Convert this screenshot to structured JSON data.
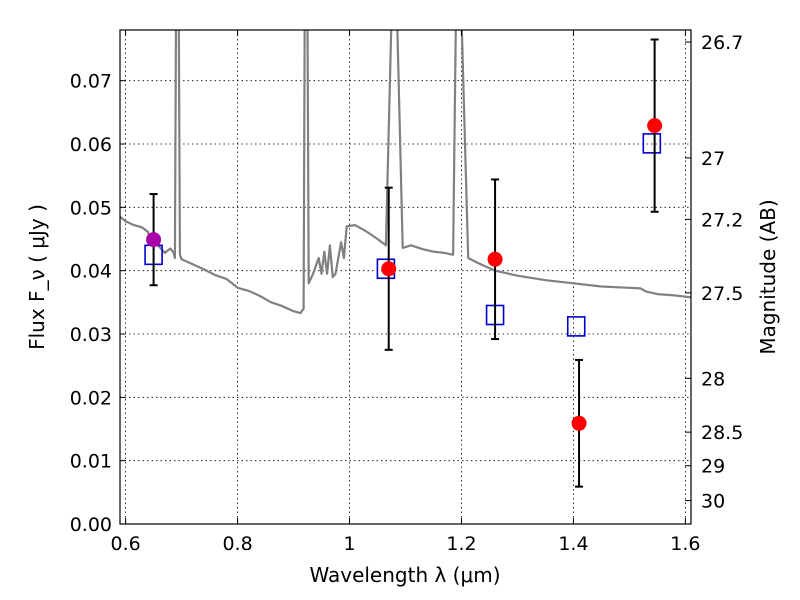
{
  "chart_data": {
    "type": "scatter",
    "xlabel": "Wavelength  λ (μm)",
    "ylabel": "Flux  F_ν  ( μJy )",
    "ylabel_right": "Magnitude (AB)",
    "xlim": [
      0.59,
      1.61
    ],
    "ylim": [
      0.0,
      0.078
    ],
    "grid": true,
    "x_ticks": [
      0.6,
      0.8,
      1.0,
      1.2,
      1.4,
      1.6
    ],
    "x_tick_labels": [
      "0.6",
      "0.8",
      "1",
      "1.2",
      "1.4",
      "1.6"
    ],
    "y_ticks": [
      0.0,
      0.01,
      0.02,
      0.03,
      0.04,
      0.05,
      0.06,
      0.07
    ],
    "y_tick_labels": [
      "0.00",
      "0.01",
      "0.02",
      "0.03",
      "0.04",
      "0.05",
      "0.06",
      "0.07"
    ],
    "right_ticks": [
      {
        "label": "26.7",
        "flux": 0.0761
      },
      {
        "label": "27",
        "flux": 0.0578
      },
      {
        "label": "27.2",
        "flux": 0.0481
      },
      {
        "label": "27.5",
        "flux": 0.0365
      },
      {
        "label": "28",
        "flux": 0.023
      },
      {
        "label": "28.5",
        "flux": 0.0145
      },
      {
        "label": "29",
        "flux": 0.0092
      },
      {
        "label": "30",
        "flux": 0.0037
      }
    ],
    "colors": {
      "model": "#808080",
      "observed": "#ff0000",
      "observed_first": "#aa00aa",
      "model_band": "#0000cc",
      "errorbar": "#000000"
    },
    "series": [
      {
        "kind": "model-spectrum",
        "points": [
          [
            0.59,
            0.0485
          ],
          [
            0.6,
            0.0478
          ],
          [
            0.615,
            0.0472
          ],
          [
            0.63,
            0.0468
          ],
          [
            0.64,
            0.0461
          ],
          [
            0.645,
            0.0442
          ],
          [
            0.65,
            0.0447
          ],
          [
            0.66,
            0.0438
          ],
          [
            0.67,
            0.0428
          ],
          [
            0.68,
            0.0435
          ],
          [
            0.686,
            0.0428
          ],
          [
            0.688,
            0.042
          ],
          [
            0.69,
            0.08
          ],
          [
            0.695,
            0.08
          ],
          [
            0.697,
            0.0425
          ],
          [
            0.7,
            0.0418
          ],
          [
            0.72,
            0.041
          ],
          [
            0.74,
            0.0402
          ],
          [
            0.76,
            0.0393
          ],
          [
            0.78,
            0.0387
          ],
          [
            0.79,
            0.038
          ],
          [
            0.8,
            0.0373
          ],
          [
            0.82,
            0.0368
          ],
          [
            0.84,
            0.036
          ],
          [
            0.86,
            0.035
          ],
          [
            0.88,
            0.0344
          ],
          [
            0.9,
            0.0336
          ],
          [
            0.912,
            0.0333
          ],
          [
            0.918,
            0.034
          ],
          [
            0.92,
            0.08
          ],
          [
            0.925,
            0.08
          ],
          [
            0.927,
            0.038
          ],
          [
            0.935,
            0.0395
          ],
          [
            0.945,
            0.042
          ],
          [
            0.95,
            0.0395
          ],
          [
            0.955,
            0.043
          ],
          [
            0.96,
            0.0395
          ],
          [
            0.965,
            0.044
          ],
          [
            0.97,
            0.039
          ],
          [
            0.975,
            0.0395
          ],
          [
            0.985,
            0.0445
          ],
          [
            0.99,
            0.042
          ],
          [
            0.995,
            0.047
          ],
          [
            1.01,
            0.0472
          ],
          [
            1.03,
            0.0462
          ],
          [
            1.05,
            0.045
          ],
          [
            1.065,
            0.044
          ],
          [
            1.075,
            0.08
          ],
          [
            1.085,
            0.08
          ],
          [
            1.095,
            0.0436
          ],
          [
            1.11,
            0.044
          ],
          [
            1.13,
            0.0434
          ],
          [
            1.15,
            0.043
          ],
          [
            1.17,
            0.0428
          ],
          [
            1.185,
            0.0425
          ],
          [
            1.19,
            0.08
          ],
          [
            1.2,
            0.08
          ],
          [
            1.212,
            0.042
          ],
          [
            1.23,
            0.0412
          ],
          [
            1.26,
            0.04
          ],
          [
            1.3,
            0.0392
          ],
          [
            1.35,
            0.0385
          ],
          [
            1.4,
            0.038
          ],
          [
            1.45,
            0.0375
          ],
          [
            1.5,
            0.0373
          ],
          [
            1.52,
            0.0372
          ],
          [
            1.53,
            0.0367
          ],
          [
            1.55,
            0.0363
          ],
          [
            1.58,
            0.0361
          ],
          [
            1.61,
            0.0358
          ]
        ]
      },
      {
        "kind": "observed",
        "points": [
          {
            "x": 0.65,
            "y": 0.0449,
            "yerr_low": 0.0072,
            "yerr_high": 0.0072,
            "color": "#aa00aa"
          },
          {
            "x": 1.07,
            "y": 0.0403,
            "yerr_low": 0.0128,
            "yerr_high": 0.0128
          },
          {
            "x": 1.26,
            "y": 0.0418,
            "yerr_low": 0.0126,
            "yerr_high": 0.0126
          },
          {
            "x": 1.41,
            "y": 0.0159,
            "yerr_low": 0.01,
            "yerr_high": 0.01
          },
          {
            "x": 1.545,
            "y": 0.0629,
            "yerr_low": 0.0136,
            "yerr_high": 0.0136
          }
        ]
      },
      {
        "kind": "model-band",
        "points": [
          {
            "x": 0.65,
            "y": 0.0425
          },
          {
            "x": 1.065,
            "y": 0.0403
          },
          {
            "x": 1.26,
            "y": 0.033
          },
          {
            "x": 1.405,
            "y": 0.0312
          },
          {
            "x": 1.54,
            "y": 0.0601
          }
        ]
      }
    ]
  }
}
